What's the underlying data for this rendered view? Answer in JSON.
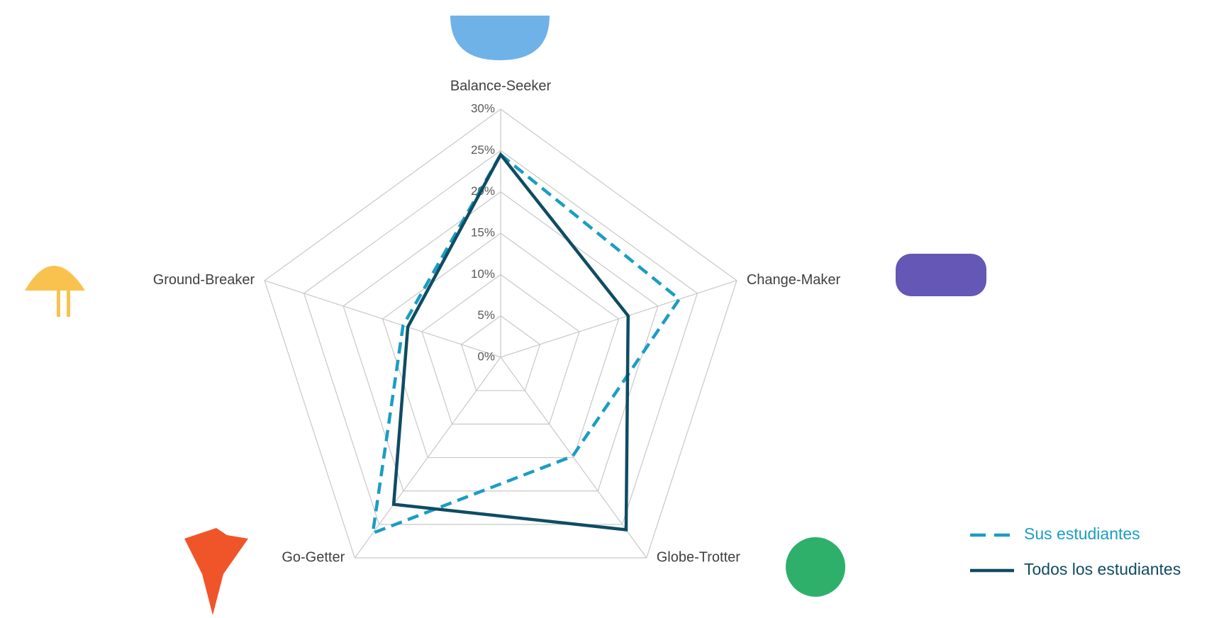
{
  "chart_data": {
    "type": "radar",
    "categories": [
      "Balance-Seeker",
      "Change-Maker",
      "Globe-Trotter",
      "Go-Getter",
      "Ground-Breaker"
    ],
    "series": [
      {
        "name": "Sus estudiantes",
        "color": "#1b9dc4",
        "dashed": true,
        "values": [
          24.5,
          22.7,
          14.8,
          26.3,
          12.4
        ]
      },
      {
        "name": "Todos los estudiantes",
        "color": "#0f4c62",
        "dashed": false,
        "values": [
          24.5,
          16.2,
          25.8,
          22.0,
          11.8
        ]
      }
    ],
    "rlim": [
      0,
      30
    ],
    "rticks": [
      {
        "value": 0,
        "label": "0%"
      },
      {
        "value": 5,
        "label": "5%"
      },
      {
        "value": 10,
        "label": "10%"
      },
      {
        "value": 15,
        "label": "15%"
      },
      {
        "value": 20,
        "label": "20%"
      },
      {
        "value": 25,
        "label": "25%"
      },
      {
        "value": 30,
        "label": "30%"
      }
    ],
    "grid": true,
    "legend": "bottom-right"
  }
}
